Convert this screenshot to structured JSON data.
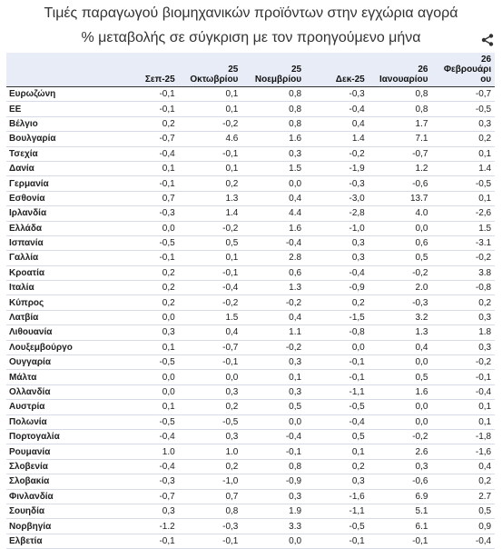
{
  "title": "Τιμές παραγωγού βιομηχανικών προϊόντων στην εγχώρια αγορά",
  "subtitle": "% μεταβολής σε σύγκριση με τον προηγούμενο μήνα",
  "share_icon": "share-icon",
  "table": {
    "columns": [
      "",
      "Σεπ-25",
      "25\nΟκτωβρίου",
      "25\nΝοεμβρίου",
      "Δεκ-25",
      "26\nΙανουαρίου",
      "26\nΦεβρουάρι\nου"
    ],
    "rows": [
      {
        "country": "Ευρωζώνη",
        "values": [
          "-0,1",
          "0,1",
          "0,8",
          "-0,3",
          "0,8",
          "-0,7"
        ]
      },
      {
        "country": "ΕΕ",
        "values": [
          "-0,1",
          "0,1",
          "0,8",
          "-0,4",
          "0,8",
          "-0,5"
        ]
      },
      {
        "country": "Βέλγιο",
        "values": [
          "0,2",
          "-0,2",
          "0,8",
          "0,4",
          "1.7",
          "0,3"
        ]
      },
      {
        "country": "Βουλγαρία",
        "values": [
          "-0,7",
          "4.6",
          "1.6",
          "1.4",
          "7.1",
          "0,2"
        ]
      },
      {
        "country": "Τσεχία",
        "values": [
          "-0,4",
          "-0,1",
          "0,3",
          "-0,2",
          "-0,7",
          "0,1"
        ]
      },
      {
        "country": "Δανία",
        "values": [
          "0,1",
          "0,1",
          "1.5",
          "-1,9",
          "1.2",
          "1.4"
        ]
      },
      {
        "country": "Γερμανία",
        "values": [
          "-0,1",
          "0,2",
          "0,0",
          "-0,3",
          "-0,6",
          "-0,5"
        ]
      },
      {
        "country": "Εσθονία",
        "values": [
          "0,7",
          "1.3",
          "0,4",
          "-3,0",
          "13.7",
          "0,1"
        ]
      },
      {
        "country": "Ιρλανδία",
        "values": [
          "-0,3",
          "1.4",
          "4.4",
          "-2,8",
          "4.0",
          "-2,6"
        ]
      },
      {
        "country": "Ελλάδα",
        "values": [
          "0,0",
          "-0,2",
          "1.6",
          "-1,0",
          "0,0",
          "1.5"
        ]
      },
      {
        "country": "Ισπανία",
        "values": [
          "-0,5",
          "0,5",
          "-0,4",
          "0,3",
          "0,6",
          "-3.1"
        ]
      },
      {
        "country": "Γαλλία",
        "values": [
          "-0,1",
          "0,1",
          "2.8",
          "0,3",
          "0,5",
          "-0,2"
        ]
      },
      {
        "country": "Κροατία",
        "values": [
          "0,2",
          "-0,1",
          "0,6",
          "-0,4",
          "-0,2",
          "3.8"
        ]
      },
      {
        "country": "Ιταλία",
        "values": [
          "0,2",
          "-0,4",
          "1.3",
          "-0,9",
          "2.0",
          "-0,8"
        ]
      },
      {
        "country": "Κύπρος",
        "values": [
          "0,2",
          "-0,2",
          "-0,2",
          "0,2",
          "-0,3",
          "0,2"
        ]
      },
      {
        "country": "Λατβία",
        "values": [
          "0,0",
          "1.5",
          "0,4",
          "-1,5",
          "3.2",
          "0,3"
        ]
      },
      {
        "country": "Λιθουανία",
        "values": [
          "0,3",
          "0,4",
          "1.1",
          "-0,8",
          "1.3",
          "1.8"
        ]
      },
      {
        "country": "Λουξεμβούργο",
        "values": [
          "0,1",
          "-0,7",
          "-0,2",
          "0,0",
          "0,4",
          "0,3"
        ]
      },
      {
        "country": "Ουγγαρία",
        "values": [
          "-0,5",
          "-0,1",
          "0,3",
          "-0,1",
          "0,0",
          "-0,2"
        ]
      },
      {
        "country": "Μάλτα",
        "values": [
          "0,0",
          "0,0",
          "0,1",
          "-0,1",
          "0,5",
          "-0,1"
        ]
      },
      {
        "country": "Ολλανδία",
        "values": [
          "0,0",
          "0,3",
          "0,3",
          "-1,1",
          "1.6",
          "-0,4"
        ]
      },
      {
        "country": "Αυστρία",
        "values": [
          "0,1",
          "0,2",
          "0,5",
          "-0,5",
          "0,0",
          "0,1"
        ]
      },
      {
        "country": "Πολωνία",
        "values": [
          "-0,5",
          "-0,5",
          "0,0",
          "-0,4",
          "0,0",
          "0,1"
        ]
      },
      {
        "country": "Πορτογαλία",
        "values": [
          "-0,4",
          "0,3",
          "-0,4",
          "0,5",
          "-0,2",
          "-1,8"
        ]
      },
      {
        "country": "Ρουμανία",
        "values": [
          "1.0",
          "1.0",
          "-0,1",
          "0,1",
          "2.6",
          "-1,6"
        ]
      },
      {
        "country": "Σλοβενία",
        "values": [
          "-0,4",
          "0,2",
          "0,8",
          "0,2",
          "0,3",
          "0,4"
        ]
      },
      {
        "country": "Σλοβακία",
        "values": [
          "-0,3",
          "-1,0",
          "-0,9",
          "0,3",
          "-0,6",
          "0,2"
        ]
      },
      {
        "country": "Φινλανδία",
        "values": [
          "-0,7",
          "0,7",
          "0,3",
          "-1,6",
          "6.9",
          "2.7"
        ]
      },
      {
        "country": "Σουηδία",
        "values": [
          "0,3",
          "0,8",
          "1.9",
          "-1,1",
          "5.1",
          "0,5"
        ]
      },
      {
        "country": "Νορβηγία",
        "values": [
          "-1.2",
          "-0,3",
          "3.3",
          "-0,5",
          "6.1",
          "0,9"
        ]
      },
      {
        "country": "Ελβετία",
        "values": [
          "-0,1",
          "-0,1",
          "0,0",
          "-0,1",
          "-0,1",
          "-0,4"
        ]
      }
    ]
  },
  "colors": {
    "header_bg": "#e8ecf6",
    "row_border": "#d6dbe6"
  }
}
